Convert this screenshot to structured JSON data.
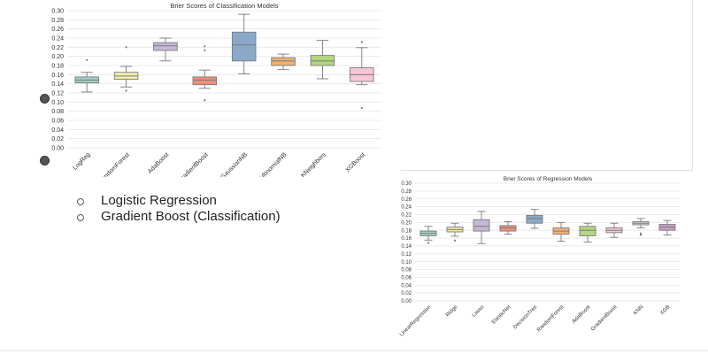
{
  "slide": {
    "bullets": [
      {
        "text": "Logistic Regression"
      },
      {
        "text": "Gradient Boost (Classification)"
      }
    ]
  },
  "colors": {
    "grid": "#e6e6e6",
    "axis_text": "#333333",
    "box_edge": "#7a7a7a",
    "bullet_marker": "#555555"
  },
  "chart_data": [
    {
      "type": "box",
      "title": "Brier Scores of Classification Models",
      "xlabel": "",
      "ylabel": "",
      "ylim": [
        0,
        0.3
      ],
      "yticks": [
        "0.00",
        "0.02",
        "0.04",
        "0.06",
        "0.08",
        "0.10",
        "0.12",
        "0.14",
        "0.16",
        "0.18",
        "0.20",
        "0.22",
        "0.24",
        "0.26",
        "0.28",
        "0.30"
      ],
      "grid": true,
      "categories": [
        "LogReg",
        "RandomForest",
        "AdaBoost",
        "GradientBoost",
        "GaussianNB",
        "MultinomialNB",
        "KNeighbors",
        "XGBoost"
      ],
      "colors": [
        "#9fcfc5",
        "#f4eeaa",
        "#c4b7d8",
        "#ef8e7c",
        "#8aa9c9",
        "#f1b072",
        "#b4d67e",
        "#f6c6d8"
      ],
      "boxes": [
        {
          "whislo": 0.122,
          "q1": 0.142,
          "med": 0.148,
          "q3": 0.155,
          "whishi": 0.165,
          "fliers": [
            0.192
          ]
        },
        {
          "whislo": 0.133,
          "q1": 0.15,
          "med": 0.157,
          "q3": 0.165,
          "whishi": 0.178,
          "fliers": [
            0.22,
            0.125
          ]
        },
        {
          "whislo": 0.19,
          "q1": 0.213,
          "med": 0.223,
          "q3": 0.23,
          "whishi": 0.24,
          "fliers": []
        },
        {
          "whislo": 0.13,
          "q1": 0.138,
          "med": 0.148,
          "q3": 0.155,
          "whishi": 0.17,
          "fliers": [
            0.222,
            0.213,
            0.104
          ]
        },
        {
          "whislo": 0.162,
          "q1": 0.19,
          "med": 0.225,
          "q3": 0.253,
          "whishi": 0.292,
          "fliers": []
        },
        {
          "whislo": 0.171,
          "q1": 0.18,
          "med": 0.19,
          "q3": 0.197,
          "whishi": 0.205,
          "fliers": []
        },
        {
          "whislo": 0.151,
          "q1": 0.18,
          "med": 0.19,
          "q3": 0.202,
          "whishi": 0.235,
          "fliers": []
        },
        {
          "whislo": 0.138,
          "q1": 0.145,
          "med": 0.16,
          "q3": 0.175,
          "whishi": 0.219,
          "fliers": [
            0.231,
            0.087
          ]
        }
      ]
    },
    {
      "type": "box",
      "title": "Brier Scores of Regression Models",
      "xlabel": "",
      "ylabel": "",
      "ylim": [
        0,
        0.3
      ],
      "yticks": [
        "0.00",
        "0.02",
        "0.04",
        "0.06",
        "0.08",
        "0.10",
        "0.12",
        "0.14",
        "0.16",
        "0.18",
        "0.20",
        "0.22",
        "0.24",
        "0.26",
        "0.28",
        "0.30"
      ],
      "grid": true,
      "categories": [
        "LinearRegression",
        "Ridge",
        "Lasso",
        "ElasticNet",
        "DecisionTree",
        "RandomForest",
        "AdaBoost",
        "GradientBoost",
        "KNN",
        "XGB"
      ],
      "colors": [
        "#9fcfc5",
        "#f4eeaa",
        "#c4b7d8",
        "#ef8e7c",
        "#8aa9c9",
        "#f1b072",
        "#b4d67e",
        "#f6c6d8",
        "#d8d8d8",
        "#c79ec8"
      ],
      "boxes": [
        {
          "whislo": 0.155,
          "q1": 0.166,
          "med": 0.172,
          "q3": 0.178,
          "whishi": 0.19,
          "fliers": [
            0.148
          ]
        },
        {
          "whislo": 0.165,
          "q1": 0.176,
          "med": 0.182,
          "q3": 0.188,
          "whishi": 0.198,
          "fliers": [
            0.154
          ]
        },
        {
          "whislo": 0.146,
          "q1": 0.178,
          "med": 0.19,
          "q3": 0.207,
          "whishi": 0.228,
          "fliers": []
        },
        {
          "whislo": 0.17,
          "q1": 0.178,
          "med": 0.186,
          "q3": 0.192,
          "whishi": 0.202,
          "fliers": []
        },
        {
          "whislo": 0.185,
          "q1": 0.198,
          "med": 0.21,
          "q3": 0.218,
          "whishi": 0.233,
          "fliers": []
        },
        {
          "whislo": 0.152,
          "q1": 0.17,
          "med": 0.178,
          "q3": 0.186,
          "whishi": 0.2,
          "fliers": []
        },
        {
          "whislo": 0.15,
          "q1": 0.166,
          "med": 0.18,
          "q3": 0.19,
          "whishi": 0.198,
          "fliers": []
        },
        {
          "whislo": 0.162,
          "q1": 0.174,
          "med": 0.18,
          "q3": 0.186,
          "whishi": 0.198,
          "fliers": []
        },
        {
          "whislo": 0.186,
          "q1": 0.194,
          "med": 0.198,
          "q3": 0.202,
          "whishi": 0.21,
          "fliers": [
            0.172,
            0.168
          ]
        },
        {
          "whislo": 0.168,
          "q1": 0.18,
          "med": 0.188,
          "q3": 0.195,
          "whishi": 0.205,
          "fliers": []
        }
      ]
    }
  ]
}
